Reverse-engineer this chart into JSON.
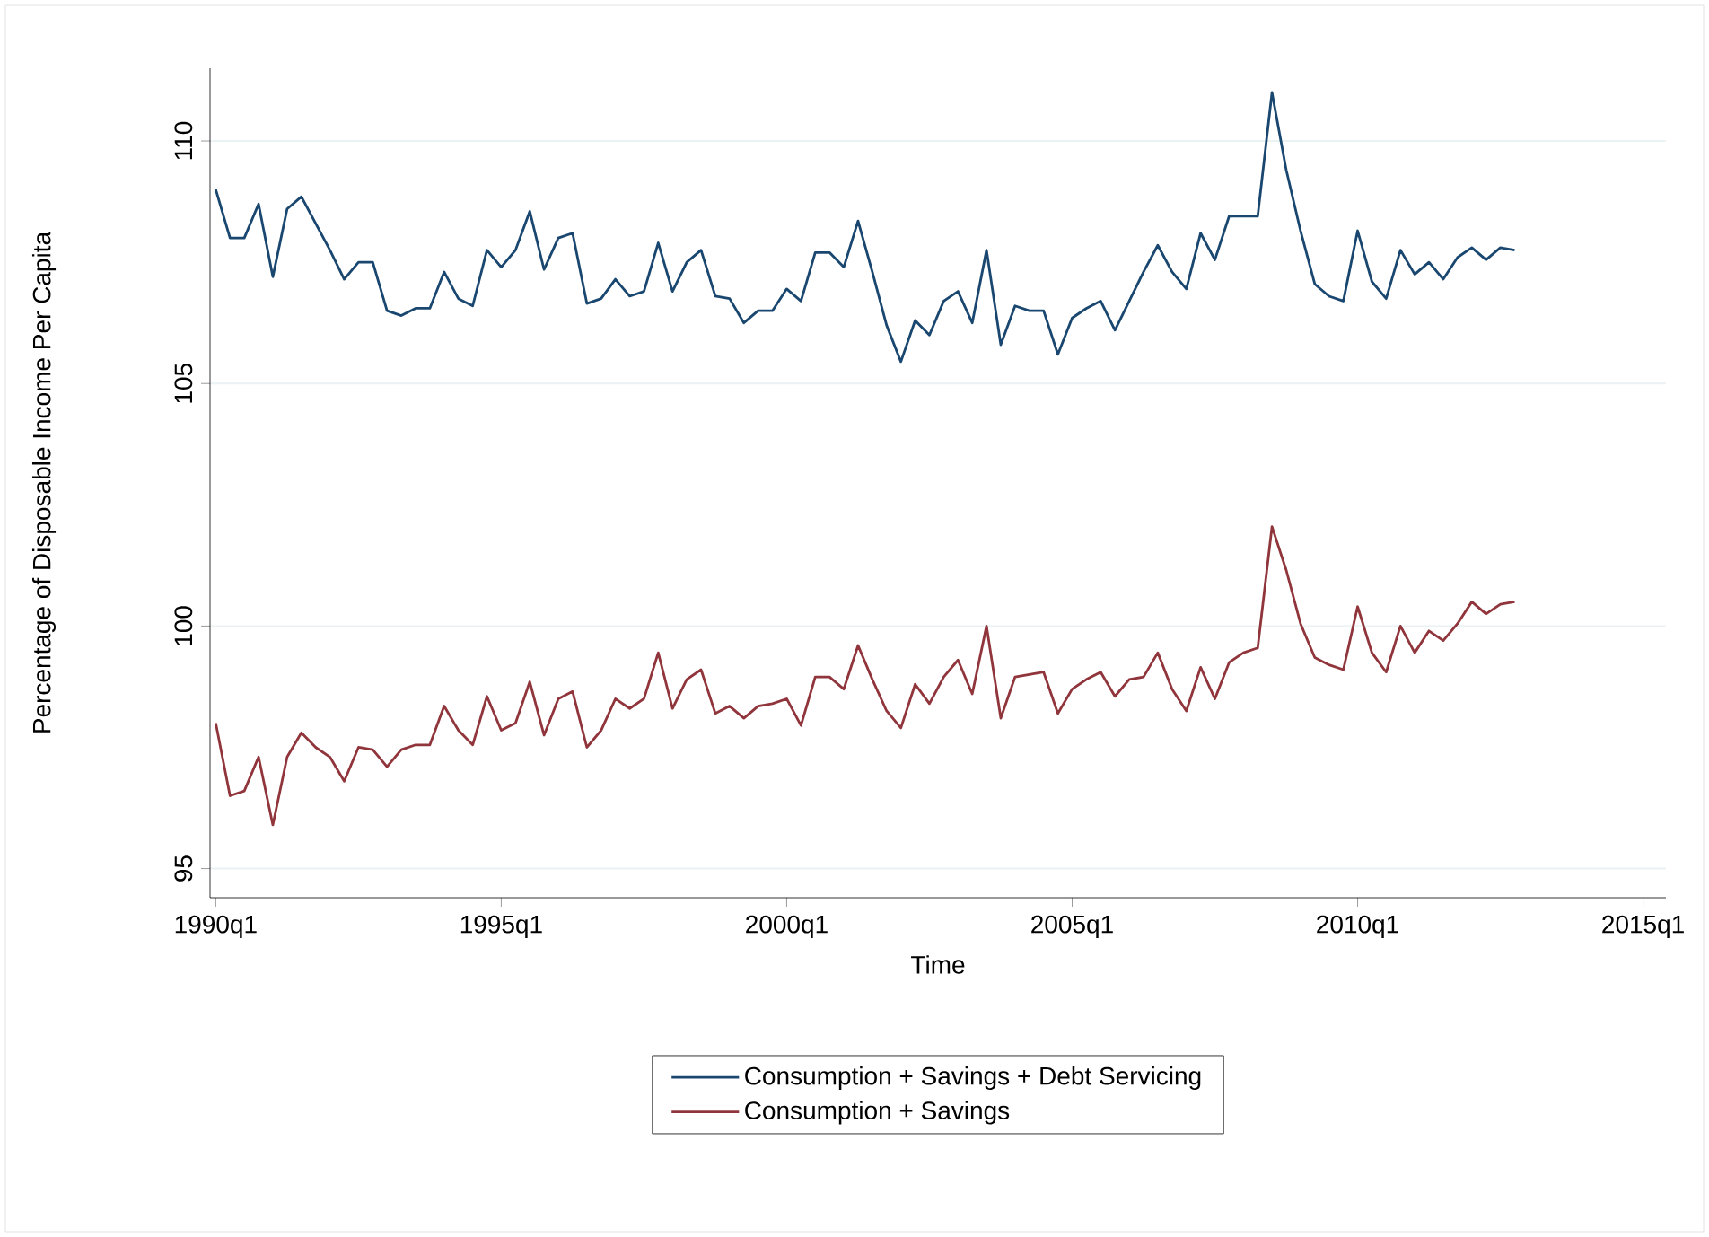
{
  "chart_data": {
    "type": "line",
    "xlabel": "Time",
    "ylabel": "Percentage of Disposable Income Per Capita",
    "categories": [
      "1990q1",
      null,
      null,
      null,
      null,
      null,
      null,
      null,
      null,
      null,
      null,
      null,
      null,
      null,
      null,
      null,
      null,
      null,
      null,
      null,
      "1995q1",
      null,
      null,
      null,
      null,
      null,
      null,
      null,
      null,
      null,
      null,
      null,
      null,
      null,
      null,
      null,
      null,
      null,
      null,
      null,
      "2000q1",
      null,
      null,
      null,
      null,
      null,
      null,
      null,
      null,
      null,
      null,
      null,
      null,
      null,
      null,
      null,
      null,
      null,
      null,
      null,
      "2005q1",
      null,
      null,
      null,
      null,
      null,
      null,
      null,
      null,
      null,
      null,
      null,
      null,
      null,
      null,
      null,
      null,
      null,
      null,
      null,
      "2010q1",
      null,
      null,
      null,
      null,
      null,
      null,
      null,
      null,
      null,
      null,
      null,
      null,
      null,
      null,
      null,
      null,
      null,
      null,
      null,
      "2015q1"
    ],
    "series": [
      {
        "name": "Consumption + Savings + Debt Servicing",
        "color": "#1a476f",
        "values": [
          109.0,
          108.0,
          108.0,
          108.7,
          107.2,
          108.6,
          108.85,
          108.3,
          107.75,
          107.15,
          107.5,
          107.5,
          106.5,
          106.4,
          106.55,
          106.55,
          107.3,
          106.75,
          106.6,
          107.75,
          107.4,
          107.75,
          108.55,
          107.35,
          108.0,
          108.1,
          106.65,
          106.75,
          107.15,
          106.8,
          106.9,
          107.9,
          106.9,
          107.5,
          107.75,
          106.8,
          106.75,
          106.25,
          106.5,
          106.5,
          106.95,
          106.7,
          107.7,
          107.7,
          107.4,
          108.35,
          107.3,
          106.2,
          105.45,
          106.3,
          106.0,
          106.7,
          106.9,
          106.25,
          107.75,
          105.8,
          106.6,
          106.5,
          106.5,
          105.6,
          106.35,
          106.55,
          106.7,
          106.1,
          106.7,
          107.3,
          107.85,
          107.3,
          106.95,
          108.1,
          107.55,
          108.45,
          108.45,
          108.45,
          111.0,
          109.4,
          108.15,
          107.05,
          106.8,
          106.7,
          108.15,
          107.1,
          106.75,
          107.75,
          107.25,
          107.5,
          107.15,
          107.6,
          107.8,
          107.55,
          107.8,
          107.75,
          null,
          null,
          null,
          null,
          null,
          null,
          null,
          null,
          null
        ]
      },
      {
        "name": "Consumption + Savings",
        "color": "#90353b",
        "values": [
          98.0,
          96.5,
          96.6,
          97.3,
          95.9,
          97.3,
          97.8,
          97.5,
          97.3,
          96.8,
          97.5,
          97.45,
          97.1,
          97.45,
          97.55,
          97.55,
          98.35,
          97.85,
          97.55,
          98.55,
          97.85,
          98.0,
          98.85,
          97.75,
          98.5,
          98.65,
          97.5,
          97.85,
          98.5,
          98.3,
          98.5,
          99.45,
          98.3,
          98.9,
          99.1,
          98.2,
          98.35,
          98.1,
          98.35,
          98.4,
          98.5,
          97.95,
          98.95,
          98.95,
          98.7,
          99.6,
          98.9,
          98.25,
          97.9,
          98.8,
          98.4,
          98.95,
          99.3,
          98.6,
          100.0,
          98.1,
          98.95,
          99.0,
          99.05,
          98.2,
          98.7,
          98.9,
          99.05,
          98.55,
          98.9,
          98.95,
          99.45,
          98.7,
          98.25,
          99.15,
          98.5,
          99.25,
          99.45,
          99.55,
          102.05,
          101.15,
          100.05,
          99.35,
          99.2,
          99.1,
          100.4,
          99.45,
          99.05,
          100.0,
          99.45,
          99.9,
          99.7,
          100.05,
          100.5,
          100.25,
          100.45,
          100.5,
          null,
          null,
          null,
          null,
          null,
          null,
          null,
          null,
          null
        ]
      }
    ],
    "ylim": [
      94.4,
      111.5
    ],
    "yticks": [
      95,
      100,
      105,
      110
    ],
    "grid": "y",
    "legend": "bottom",
    "marker": "none",
    "line_style": "solid"
  }
}
